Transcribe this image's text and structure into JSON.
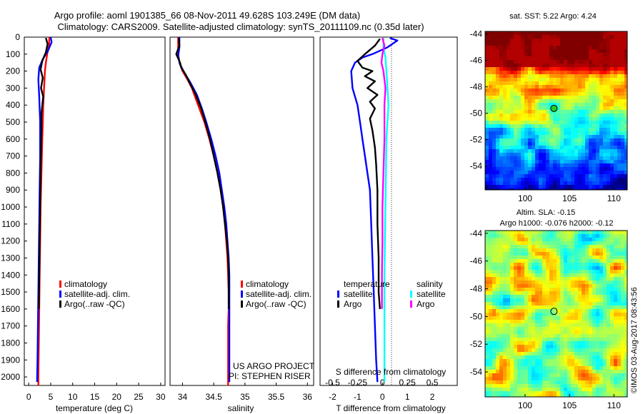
{
  "title_line1": "Argo profile: aoml 1901385_66 08-Nov-2011 49.628S 103.249E (DM data)",
  "title_line2": "Climatology: CARS2009. Satellite-adjusted climatology: synTS_20111109.nc (0.35d later)",
  "colors": {
    "climatology": "#ff0000",
    "satellite": "#0000ff",
    "argo": "#000000",
    "salinity_satellite": "#00ffff",
    "salinity_argo": "#ff00ff"
  },
  "depth_ticks": [
    "0",
    "100",
    "200",
    "300",
    "400",
    "500",
    "600",
    "700",
    "800",
    "900",
    "1000",
    "1100",
    "1200",
    "1300",
    "1400",
    "1500",
    "1600",
    "1700",
    "1800",
    "1900",
    "2000"
  ],
  "legend": {
    "climatology": "climatology",
    "satellite_adj": "satellite-adj. clim.",
    "argo": "Argo(..raw -QC)"
  },
  "credits": {
    "line1": "US ARGO PROJECT",
    "line2": "PI: STEPHEN RISER"
  },
  "diff_legend": {
    "temperature": "temperature",
    "salinity": "salinity",
    "satellite": "satellite",
    "argo": "Argo"
  },
  "chart_data": [
    {
      "type": "line",
      "xlabel": "temperature (deg C)",
      "ylabel": "",
      "xlim": [
        -1,
        31
      ],
      "ylim": [
        2050,
        0
      ],
      "x_ticks": [
        "0",
        "5",
        "10",
        "15",
        "20",
        "25",
        "30"
      ],
      "series": [
        {
          "name": "climatology",
          "points": [
            [
              4.7,
              0
            ],
            [
              4.6,
              50
            ],
            [
              4.2,
              100
            ],
            [
              3.9,
              150
            ],
            [
              3.7,
              200
            ],
            [
              3.5,
              300
            ],
            [
              3.3,
              400
            ],
            [
              3.2,
              500
            ],
            [
              3.1,
              600
            ],
            [
              3.0,
              700
            ],
            [
              2.9,
              800
            ],
            [
              2.8,
              900
            ],
            [
              2.7,
              1000
            ],
            [
              2.6,
              1200
            ],
            [
              2.5,
              1400
            ],
            [
              2.4,
              1600
            ],
            [
              2.3,
              1800
            ],
            [
              2.2,
              2000
            ],
            [
              2.2,
              2050
            ]
          ]
        },
        {
          "name": "satellite-adj. clim.",
          "points": [
            [
              5.0,
              0
            ],
            [
              5.2,
              30
            ],
            [
              4.4,
              80
            ],
            [
              3.2,
              130
            ],
            [
              2.4,
              180
            ],
            [
              2.2,
              250
            ],
            [
              2.4,
              350
            ],
            [
              2.6,
              500
            ],
            [
              2.6,
              700
            ],
            [
              2.5,
              900
            ],
            [
              2.4,
              1100
            ],
            [
              2.3,
              1300
            ],
            [
              2.2,
              1500
            ],
            [
              2.1,
              1700
            ],
            [
              2.0,
              1900
            ],
            [
              1.9,
              2030
            ]
          ]
        },
        {
          "name": "Argo(..raw -QC)",
          "points": [
            [
              3.9,
              5
            ],
            [
              4.3,
              40
            ],
            [
              3.9,
              90
            ],
            [
              3.1,
              140
            ],
            [
              2.7,
              190
            ],
            [
              3.2,
              240
            ],
            [
              2.8,
              300
            ],
            [
              3.3,
              350
            ],
            [
              2.9,
              450
            ],
            [
              2.9,
              550
            ],
            [
              2.8,
              650
            ],
            [
              2.7,
              800
            ],
            [
              2.6,
              1000
            ],
            [
              2.5,
              1200
            ],
            [
              2.4,
              1400
            ],
            [
              2.3,
              1600
            ]
          ]
        }
      ]
    },
    {
      "type": "line",
      "xlabel": "salinity",
      "ylabel": "",
      "xlim": [
        33.8,
        36.1
      ],
      "ylim": [
        2050,
        0
      ],
      "x_ticks": [
        "34",
        "34.5",
        "35",
        "35.5",
        "36"
      ],
      "series": [
        {
          "name": "climatology",
          "points": [
            [
              33.93,
              0
            ],
            [
              33.93,
              100
            ],
            [
              33.95,
              150
            ],
            [
              34.0,
              200
            ],
            [
              34.08,
              250
            ],
            [
              34.15,
              300
            ],
            [
              34.25,
              400
            ],
            [
              34.35,
              500
            ],
            [
              34.43,
              600
            ],
            [
              34.5,
              700
            ],
            [
              34.56,
              800
            ],
            [
              34.61,
              900
            ],
            [
              34.65,
              1000
            ],
            [
              34.68,
              1100
            ],
            [
              34.7,
              1200
            ],
            [
              34.72,
              1300
            ],
            [
              34.73,
              1400
            ],
            [
              34.74,
              1500
            ],
            [
              34.74,
              1600
            ],
            [
              34.73,
              1700
            ],
            [
              34.73,
              1800
            ],
            [
              34.73,
              2050
            ]
          ]
        },
        {
          "name": "satellite-adj. clim.",
          "points": [
            [
              33.95,
              0
            ],
            [
              33.95,
              60
            ],
            [
              33.93,
              110
            ],
            [
              33.96,
              160
            ],
            [
              34.03,
              210
            ],
            [
              34.13,
              270
            ],
            [
              34.23,
              340
            ],
            [
              34.31,
              420
            ],
            [
              34.38,
              500
            ],
            [
              34.46,
              600
            ],
            [
              34.53,
              700
            ],
            [
              34.59,
              800
            ],
            [
              34.63,
              900
            ],
            [
              34.67,
              1000
            ],
            [
              34.7,
              1100
            ],
            [
              34.72,
              1200
            ],
            [
              34.74,
              1300
            ],
            [
              34.75,
              1400
            ],
            [
              34.75,
              1500
            ],
            [
              34.75,
              1700
            ],
            [
              34.75,
              2030
            ]
          ]
        },
        {
          "name": "Argo(..raw -QC)",
          "points": [
            [
              33.94,
              5
            ],
            [
              33.95,
              50
            ],
            [
              33.9,
              100
            ],
            [
              33.96,
              150
            ],
            [
              33.98,
              180
            ],
            [
              34.05,
              220
            ],
            [
              34.13,
              280
            ],
            [
              34.2,
              330
            ],
            [
              34.3,
              420
            ],
            [
              34.38,
              520
            ],
            [
              34.44,
              600
            ],
            [
              34.5,
              700
            ],
            [
              34.56,
              800
            ],
            [
              34.61,
              900
            ],
            [
              34.65,
              1000
            ],
            [
              34.68,
              1100
            ],
            [
              34.71,
              1200
            ],
            [
              34.73,
              1300
            ],
            [
              34.74,
              1400
            ],
            [
              34.74,
              1500
            ],
            [
              34.74,
              1600
            ]
          ]
        }
      ]
    },
    {
      "type": "line",
      "xlabel": "T difference from climatology",
      "x2label": "S difference from climatology",
      "ylabel": "",
      "xlim": [
        -2.5,
        3.0
      ],
      "x2lim": [
        -0.625,
        0.75
      ],
      "ylim": [
        2050,
        0
      ],
      "x_ticks": [
        "-2",
        "-1",
        "0",
        "1",
        "2"
      ],
      "x2_ticks": [
        "-0.5",
        "-0.25",
        "0",
        "0.25",
        "0.5"
      ],
      "series": [
        {
          "name": "temperature satellite",
          "points": [
            [
              0.3,
              5
            ],
            [
              0.6,
              20
            ],
            [
              0.2,
              60
            ],
            [
              -0.4,
              100
            ],
            [
              -0.8,
              120
            ],
            [
              -1.1,
              150
            ],
            [
              -1.25,
              200
            ],
            [
              -1.2,
              300
            ],
            [
              -1.0,
              400
            ],
            [
              -0.9,
              500
            ],
            [
              -0.8,
              600
            ],
            [
              -0.7,
              700
            ],
            [
              -0.6,
              800
            ],
            [
              -0.5,
              900
            ],
            [
              -0.45,
              1100
            ],
            [
              -0.4,
              1300
            ],
            [
              -0.35,
              1500
            ],
            [
              -0.3,
              1700
            ],
            [
              -0.25,
              1900
            ],
            [
              -0.2,
              2030
            ]
          ]
        },
        {
          "name": "temperature Argo",
          "points": [
            [
              -0.1,
              10
            ],
            [
              -0.3,
              50
            ],
            [
              -0.7,
              100
            ],
            [
              -1.0,
              140
            ],
            [
              -0.8,
              180
            ],
            [
              -0.4,
              200
            ],
            [
              -0.7,
              230
            ],
            [
              -0.3,
              260
            ],
            [
              -0.6,
              300
            ],
            [
              -0.2,
              340
            ],
            [
              -0.5,
              380
            ],
            [
              -0.3,
              420
            ],
            [
              -0.5,
              480
            ],
            [
              -0.4,
              550
            ],
            [
              -0.3,
              650
            ],
            [
              -0.25,
              750
            ],
            [
              -0.2,
              900
            ],
            [
              -0.2,
              1100
            ],
            [
              -0.15,
              1300
            ],
            [
              -0.15,
              1500
            ],
            [
              -0.1,
              1600
            ]
          ]
        },
        {
          "name": "salinity satellite",
          "points": [
            [
              0.01,
              5
            ],
            [
              0.01,
              60
            ],
            [
              0.03,
              120
            ],
            [
              0.04,
              200
            ],
            [
              0.05,
              300
            ],
            [
              0.06,
              400
            ],
            [
              0.05,
              500
            ],
            [
              0.04,
              600
            ],
            [
              0.035,
              800
            ],
            [
              0.03,
              1000
            ],
            [
              0.025,
              1200
            ],
            [
              0.02,
              1400
            ],
            [
              0.02,
              1700
            ],
            [
              0.02,
              2030
            ]
          ]
        },
        {
          "name": "salinity Argo",
          "points": [
            [
              0.0,
              5
            ],
            [
              0.02,
              50
            ],
            [
              0.0,
              100
            ],
            [
              -0.01,
              150
            ],
            [
              0.01,
              200
            ],
            [
              0.02,
              250
            ],
            [
              0.03,
              300
            ],
            [
              0.02,
              400
            ],
            [
              0.02,
              500
            ],
            [
              0.02,
              600
            ],
            [
              0.015,
              700
            ],
            [
              0.01,
              800
            ],
            [
              0.0,
              1000
            ],
            [
              0.0,
              1200
            ],
            [
              -0.005,
              1400
            ],
            [
              -0.005,
              1600
            ]
          ]
        }
      ]
    },
    {
      "type": "heatmap",
      "title": "sat. SST: 5.22 Argo: 4.24",
      "xlim": [
        95.5,
        111.5
      ],
      "ylim": [
        -55.8,
        -43.8
      ],
      "x_ticks": [
        "100",
        "105",
        "110"
      ],
      "y_ticks": [
        "-44",
        "-46",
        "-48",
        "-50",
        "-52",
        "-54"
      ],
      "marker": {
        "lon": 103.249,
        "lat": -49.628
      }
    },
    {
      "type": "heatmap",
      "title_line1": "Altim. SLA: -0.15",
      "title_line2": "Argo h1000: -0.076 h2000: -0.12",
      "xlim": [
        95.5,
        111.5
      ],
      "ylim": [
        -55.8,
        -43.8
      ],
      "x_ticks": [
        "100",
        "105",
        "110"
      ],
      "y_ticks": [
        "-44",
        "-46",
        "-48",
        "-50",
        "-52",
        "-54"
      ],
      "marker": {
        "lon": 103.249,
        "lat": -49.628
      }
    }
  ],
  "watermark": "©IMOS 03-Aug-2017 08:43:56"
}
